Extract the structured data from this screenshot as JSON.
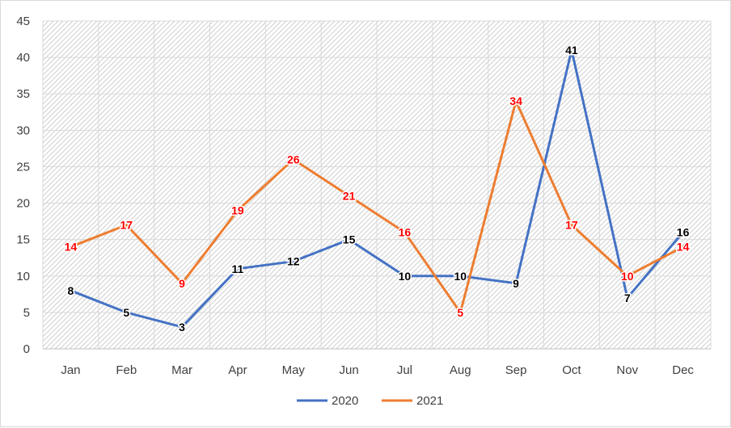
{
  "chart_data": {
    "type": "line",
    "title": "",
    "xlabel": "",
    "ylabel": "",
    "categories": [
      "Jan",
      "Feb",
      "Mar",
      "Apr",
      "May",
      "Jun",
      "Jul",
      "Aug",
      "Sep",
      "Oct",
      "Nov",
      "Dec"
    ],
    "ylim": [
      0,
      45
    ],
    "yticks": [
      "0",
      "5",
      "10",
      "15",
      "20",
      "25",
      "30",
      "35",
      "40",
      "45"
    ],
    "grid": true,
    "legend": "bottom",
    "series": [
      {
        "name": "2020",
        "color": "#4472c4",
        "label_color": "#000000",
        "values": [
          8,
          5,
          3,
          11,
          12,
          15,
          10,
          10,
          9,
          41,
          7,
          16
        ]
      },
      {
        "name": "2021",
        "color": "#ed7d31",
        "label_color": "#ff0000",
        "values": [
          14,
          17,
          9,
          19,
          26,
          21,
          16,
          5,
          34,
          17,
          10,
          14
        ]
      }
    ]
  }
}
